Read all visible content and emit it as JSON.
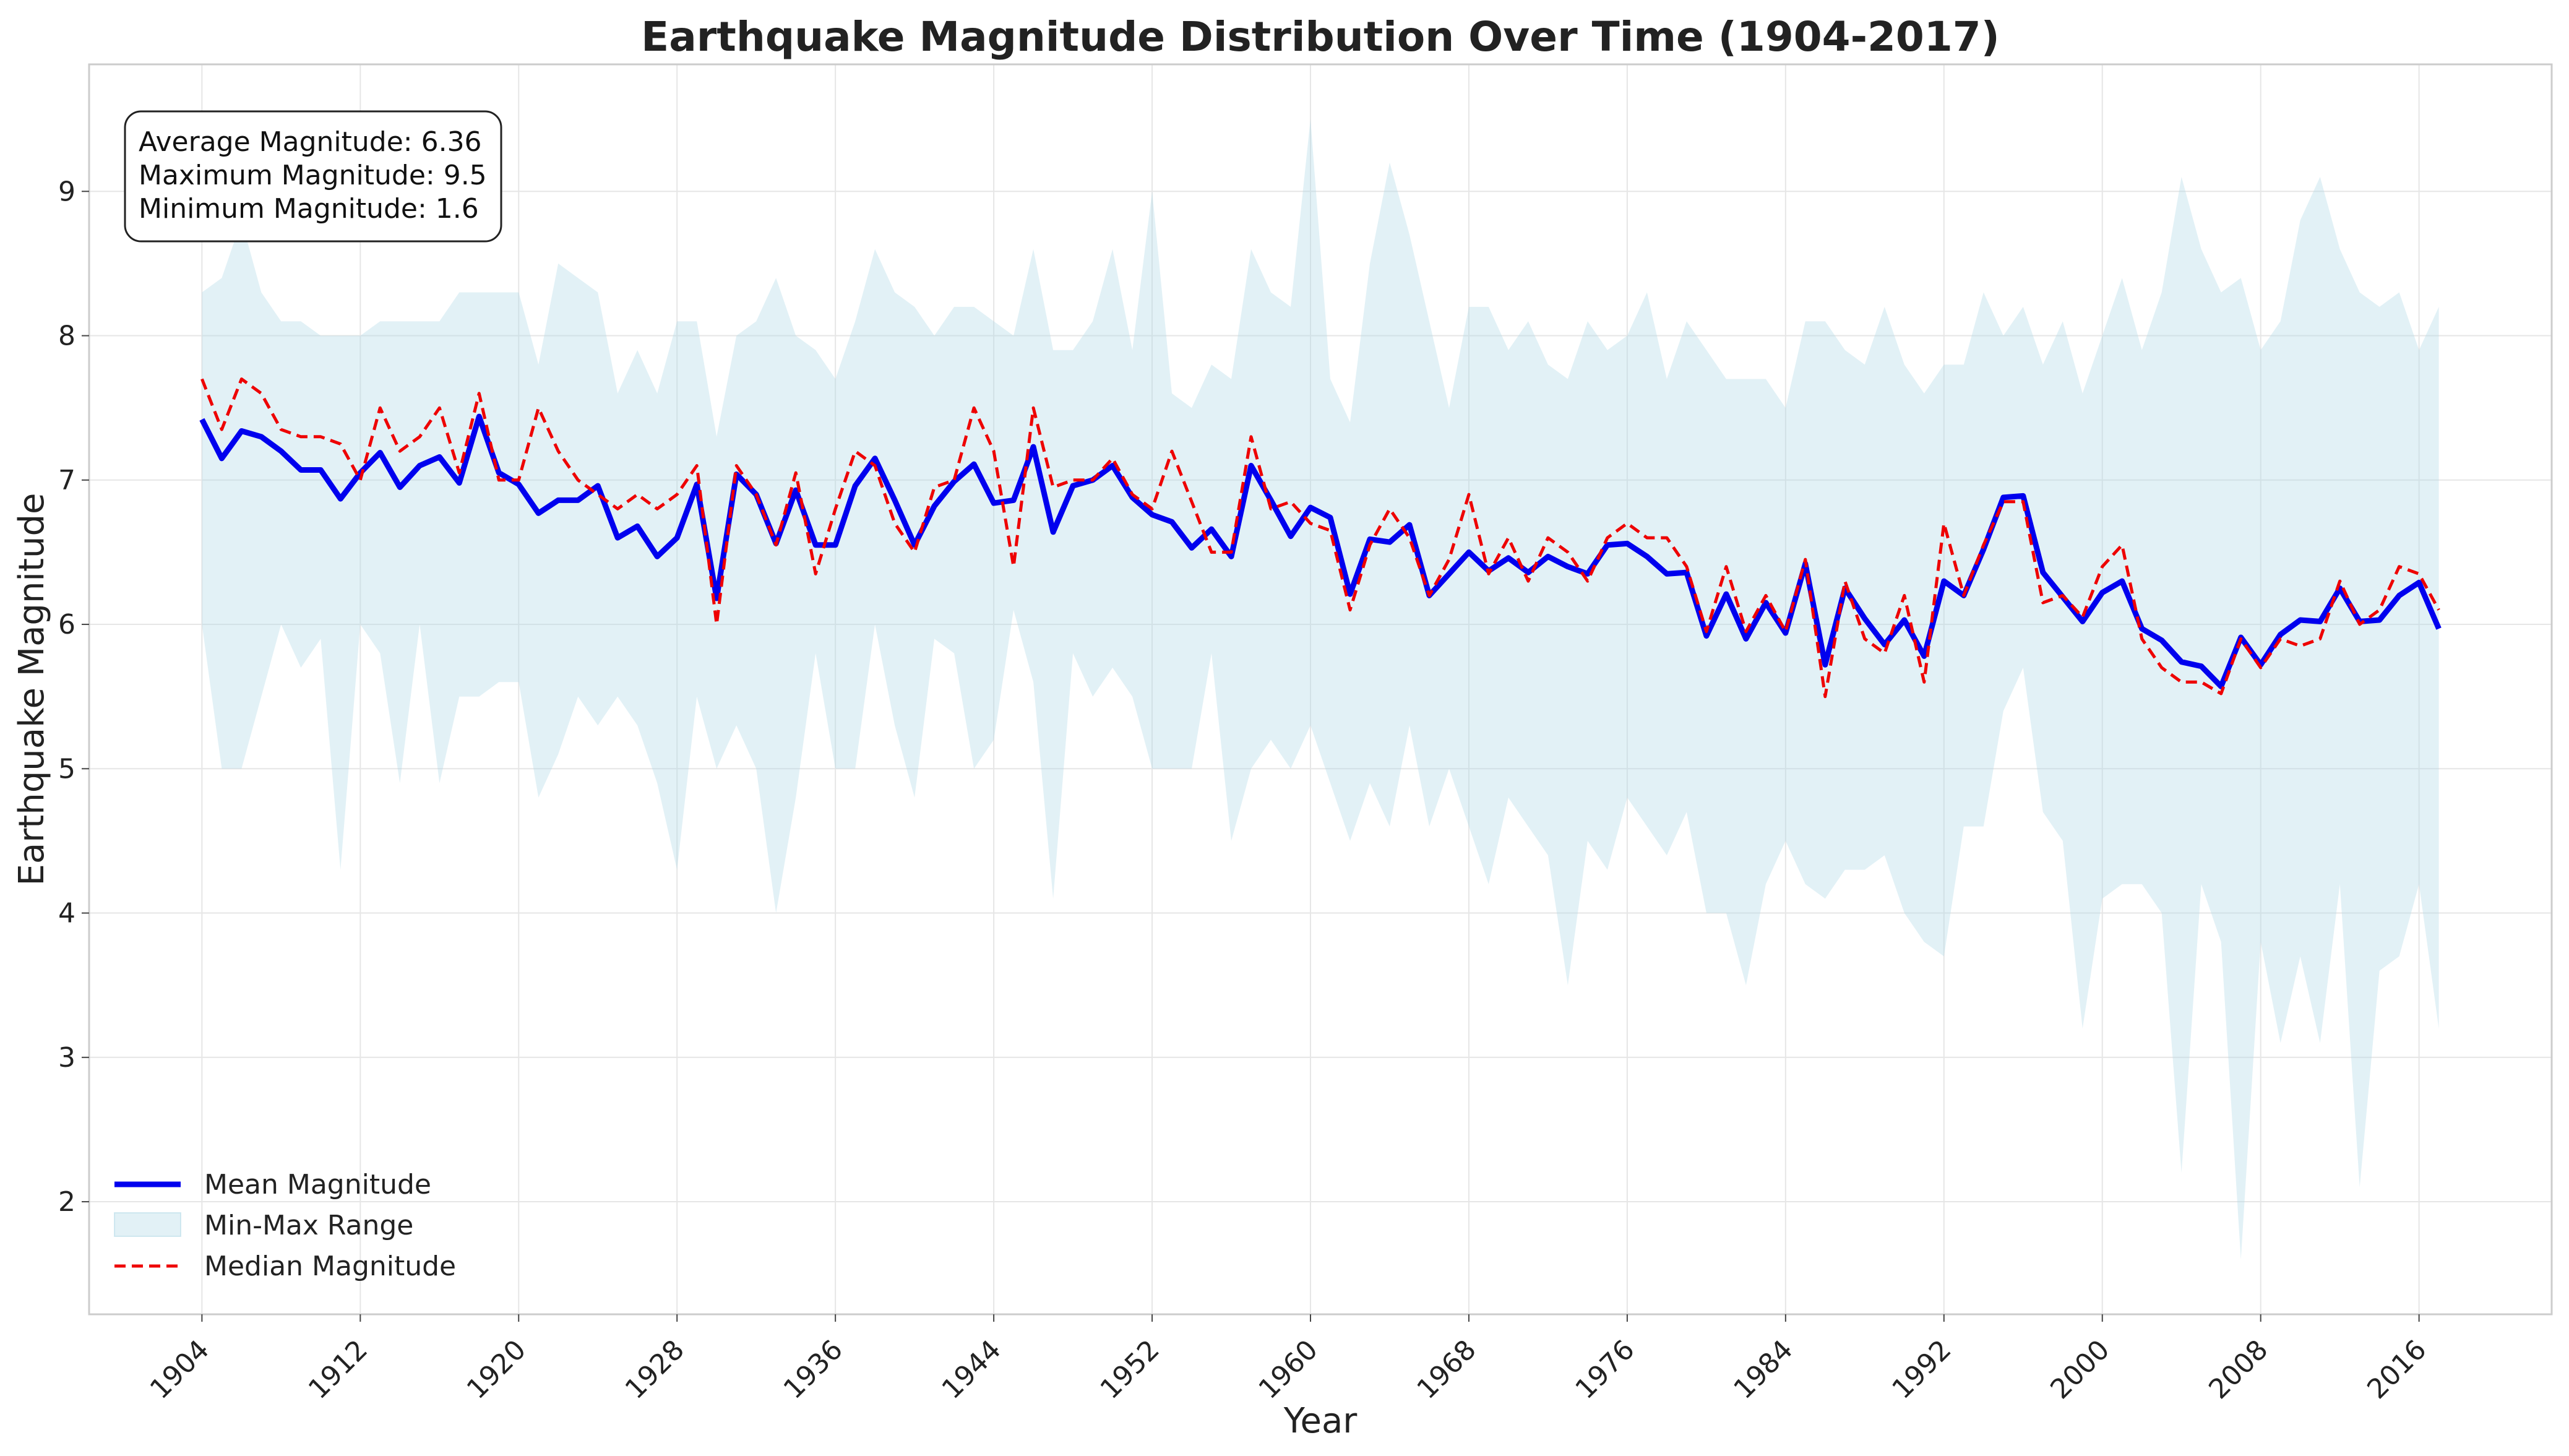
{
  "chart_data": {
    "type": "line",
    "title": "Earthquake Magnitude Distribution Over Time (1904-2017)",
    "xlabel": "Year",
    "ylabel": "Earthquake Magnitude",
    "xlim": [
      1898.3,
      2022.7
    ],
    "ylim": [
      1.22,
      9.88
    ],
    "x_ticks": [
      1904,
      1912,
      1920,
      1928,
      1936,
      1944,
      1952,
      1960,
      1968,
      1976,
      1984,
      1992,
      2000,
      2008,
      2016
    ],
    "y_ticks": [
      2,
      3,
      4,
      5,
      6,
      7,
      8,
      9
    ],
    "grid": true,
    "legend_position": "lower-left",
    "stats_box": {
      "position": "upper-left",
      "lines": [
        "Average Magnitude: 6.36",
        "Maximum Magnitude: 9.5",
        "Minimum Magnitude: 1.6"
      ]
    },
    "colors": {
      "mean": "#0000ee",
      "median": "#ee0000",
      "range_fill": "#add8e6",
      "grid": "#e6e6e6",
      "axes": "#cccccc"
    },
    "x_start": 1904,
    "x_end": 2017,
    "series": [
      {
        "name": "Mean Magnitude",
        "style": "solid",
        "values": [
          7.42,
          7.15,
          7.34,
          7.3,
          7.2,
          7.07,
          7.07,
          6.87,
          7.05,
          7.19,
          6.95,
          7.1,
          7.16,
          6.98,
          7.44,
          7.05,
          6.97,
          6.77,
          6.86,
          6.86,
          6.96,
          6.6,
          6.68,
          6.47,
          6.6,
          6.97,
          6.18,
          7.04,
          6.9,
          6.56,
          6.93,
          6.55,
          6.55,
          6.96,
          7.15,
          6.86,
          6.55,
          6.82,
          6.99,
          7.11,
          6.84,
          6.86,
          7.23,
          6.64,
          6.96,
          7.0,
          7.1,
          6.88,
          6.76,
          6.71,
          6.53,
          6.66,
          6.47,
          7.1,
          6.86,
          6.61,
          6.81,
          6.74,
          6.21,
          6.59,
          6.57,
          6.69,
          6.2,
          6.35,
          6.5,
          6.37,
          6.46,
          6.36,
          6.47,
          6.4,
          6.35,
          6.55,
          6.56,
          6.47,
          6.35,
          6.36,
          5.92,
          6.21,
          5.9,
          6.15,
          5.94,
          6.42,
          5.72,
          6.25,
          6.04,
          5.86,
          6.03,
          5.78,
          6.3,
          6.2,
          6.52,
          6.88,
          6.89,
          6.36,
          6.19,
          6.02,
          6.22,
          6.3,
          5.97,
          5.89,
          5.74,
          5.71,
          5.57,
          5.91,
          5.72,
          5.93,
          6.03,
          6.02,
          6.25,
          6.02,
          6.03,
          6.2,
          6.29,
          5.97
        ]
      },
      {
        "name": "Median Magnitude",
        "style": "dashed",
        "values": [
          7.7,
          7.35,
          7.7,
          7.6,
          7.35,
          7.3,
          7.3,
          7.25,
          7.0,
          7.5,
          7.2,
          7.3,
          7.5,
          7.05,
          7.6,
          7.0,
          7.0,
          7.5,
          7.2,
          7.0,
          6.9,
          6.8,
          6.9,
          6.8,
          6.9,
          7.1,
          6.0,
          7.1,
          6.9,
          6.55,
          7.05,
          6.35,
          6.8,
          7.2,
          7.1,
          6.7,
          6.5,
          6.95,
          7.0,
          7.5,
          7.2,
          6.4,
          7.5,
          6.95,
          7.0,
          7.0,
          7.15,
          6.9,
          6.8,
          7.2,
          6.85,
          6.5,
          6.5,
          7.3,
          6.8,
          6.85,
          6.7,
          6.65,
          6.1,
          6.55,
          6.8,
          6.6,
          6.2,
          6.45,
          6.9,
          6.35,
          6.6,
          6.3,
          6.6,
          6.5,
          6.3,
          6.6,
          6.7,
          6.6,
          6.6,
          6.4,
          5.95,
          6.4,
          5.95,
          6.2,
          5.95,
          6.45,
          5.5,
          6.3,
          5.9,
          5.8,
          6.2,
          5.6,
          6.7,
          6.2,
          6.55,
          6.85,
          6.85,
          6.15,
          6.2,
          6.05,
          6.4,
          6.55,
          5.9,
          5.7,
          5.6,
          5.6,
          5.52,
          5.9,
          5.7,
          5.9,
          5.85,
          5.9,
          6.3,
          6.0,
          6.1,
          6.4,
          6.35,
          6.1
        ]
      }
    ],
    "range": {
      "name": "Min-Max Range",
      "max": [
        8.3,
        8.4,
        8.8,
        8.3,
        8.1,
        8.1,
        8.0,
        8.0,
        8.0,
        8.1,
        8.1,
        8.1,
        8.1,
        8.3,
        8.3,
        8.3,
        8.3,
        7.8,
        8.5,
        8.4,
        8.3,
        7.6,
        7.9,
        7.6,
        8.1,
        8.1,
        7.3,
        8.0,
        8.1,
        8.4,
        8.0,
        7.9,
        7.7,
        8.1,
        8.6,
        8.3,
        8.2,
        8.0,
        8.2,
        8.2,
        8.1,
        8.0,
        8.6,
        7.9,
        7.9,
        8.1,
        8.6,
        7.9,
        9.0,
        7.6,
        7.5,
        7.8,
        7.7,
        8.6,
        8.3,
        8.2,
        9.5,
        7.7,
        7.4,
        8.5,
        9.2,
        8.7,
        8.1,
        7.5,
        8.2,
        8.2,
        7.9,
        8.1,
        7.8,
        7.7,
        8.1,
        7.9,
        8.0,
        8.3,
        7.7,
        8.1,
        7.9,
        7.7,
        7.7,
        7.7,
        7.5,
        8.1,
        8.1,
        7.9,
        7.8,
        8.2,
        7.8,
        7.6,
        7.8,
        7.8,
        8.3,
        8.0,
        8.2,
        7.8,
        8.1,
        7.6,
        8.0,
        8.4,
        7.9,
        8.3,
        9.1,
        8.6,
        8.3,
        8.4,
        7.9,
        8.1,
        8.8,
        9.1,
        8.6,
        8.3,
        8.2,
        8.3,
        7.9,
        8.2
      ],
      "min": [
        6.0,
        5.0,
        5.0,
        5.5,
        6.0,
        5.7,
        5.9,
        4.3,
        6.0,
        5.8,
        4.9,
        6.0,
        4.9,
        5.5,
        5.5,
        5.6,
        5.6,
        4.8,
        5.1,
        5.5,
        5.3,
        5.5,
        5.3,
        4.9,
        4.3,
        5.5,
        5.0,
        5.3,
        5.0,
        4.0,
        4.8,
        5.8,
        5.0,
        5.0,
        6.0,
        5.3,
        4.8,
        5.9,
        5.8,
        5.0,
        5.2,
        6.1,
        5.6,
        4.1,
        5.8,
        5.5,
        5.7,
        5.5,
        5.0,
        5.0,
        5.0,
        5.8,
        4.5,
        5.0,
        5.2,
        5.0,
        5.3,
        4.9,
        4.5,
        4.9,
        4.6,
        5.3,
        4.6,
        5.0,
        4.6,
        4.2,
        4.8,
        4.6,
        4.4,
        3.5,
        4.5,
        4.3,
        4.8,
        4.6,
        4.4,
        4.7,
        4.0,
        4.0,
        3.5,
        4.2,
        4.5,
        4.2,
        4.1,
        4.3,
        4.3,
        4.4,
        4.0,
        3.8,
        3.7,
        4.6,
        4.6,
        5.4,
        5.7,
        4.7,
        4.5,
        3.2,
        4.1,
        4.2,
        4.2,
        4.0,
        2.2,
        4.2,
        3.8,
        1.6,
        3.8,
        3.1,
        3.7,
        3.1,
        4.2,
        2.1,
        3.6,
        3.7,
        4.2,
        3.2
      ]
    }
  }
}
